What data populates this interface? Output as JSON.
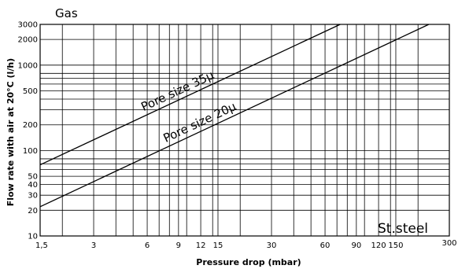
{
  "chart_data": {
    "type": "line",
    "title": "Gas",
    "annotation": "St.steel",
    "xlabel": "Pressure drop (mbar)",
    "ylabel": "Flow rate with air at 20°C (l/h)",
    "x_scale": "log",
    "y_scale": "log",
    "xlim": [
      1.5,
      300
    ],
    "ylim": [
      10,
      3000
    ],
    "grid": true,
    "x_ticks": [
      {
        "value": 1.5,
        "label": "1,5"
      },
      {
        "value": 3,
        "label": "3"
      },
      {
        "value": 6,
        "label": "6"
      },
      {
        "value": 9,
        "label": "9"
      },
      {
        "value": 12,
        "label": "12"
      },
      {
        "value": 15,
        "label": "15"
      },
      {
        "value": 30,
        "label": "30"
      },
      {
        "value": 60,
        "label": "60"
      },
      {
        "value": 90,
        "label": "90"
      },
      {
        "value": 120,
        "label": "120"
      },
      {
        "value": 150,
        "label": "150"
      },
      {
        "value": 300,
        "label": "300"
      }
    ],
    "x_gridlines": [
      1.5,
      2,
      3,
      4,
      5,
      6,
      7,
      8,
      9,
      10,
      12,
      14,
      15,
      20,
      30,
      40,
      50,
      60,
      70,
      80,
      90,
      100,
      120,
      140,
      150,
      200,
      300
    ],
    "y_ticks": [
      {
        "value": 10,
        "label": "10"
      },
      {
        "value": 20,
        "label": "20"
      },
      {
        "value": 30,
        "label": "30"
      },
      {
        "value": 40,
        "label": "40"
      },
      {
        "value": 50,
        "label": "50"
      },
      {
        "value": 100,
        "label": "100"
      },
      {
        "value": 200,
        "label": "200"
      },
      {
        "value": 500,
        "label": "500"
      },
      {
        "value": 1000,
        "label": "1000"
      },
      {
        "value": 2000,
        "label": "2000"
      },
      {
        "value": 3000,
        "label": "3000"
      }
    ],
    "y_gridlines": [
      10,
      20,
      30,
      40,
      50,
      60,
      70,
      80,
      100,
      200,
      300,
      400,
      500,
      600,
      700,
      800,
      1000,
      2000,
      3000
    ],
    "series": [
      {
        "name": "Pore size 35μ",
        "points": [
          [
            1.5,
            68
          ],
          [
            73,
            3000
          ]
        ]
      },
      {
        "name": "Pore size 20μ",
        "points": [
          [
            1.5,
            22
          ],
          [
            230,
            3000
          ]
        ]
      }
    ]
  }
}
